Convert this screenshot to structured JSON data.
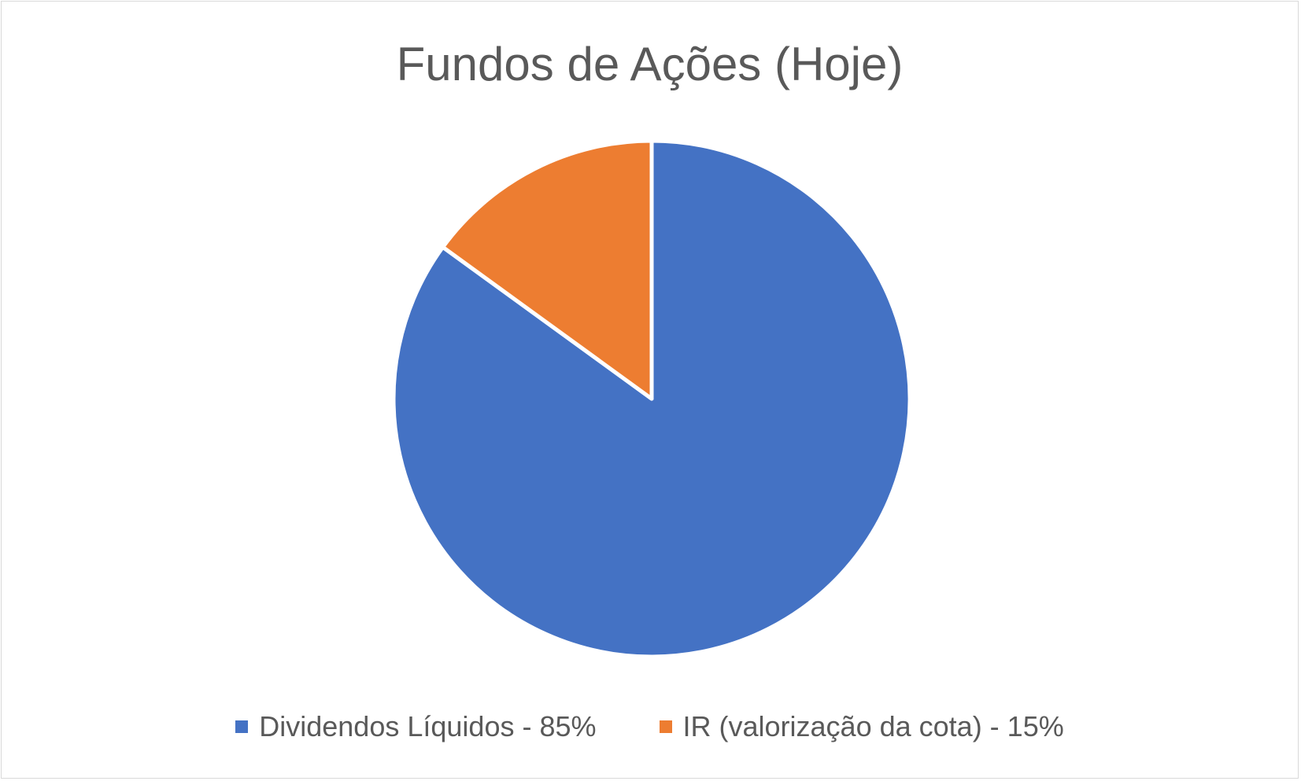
{
  "chart_data": {
    "type": "pie",
    "title": "Fundos de Ações (Hoje)",
    "slices": [
      {
        "label": "Dividendos Líquidos - 85%",
        "value": 85,
        "color": "#4472C4"
      },
      {
        "label": "IR (valorização da cota) - 15%",
        "value": 15,
        "color": "#ED7D31"
      }
    ],
    "start_angle_deg": 0,
    "direction": "clockwise",
    "legend_position": "bottom"
  }
}
